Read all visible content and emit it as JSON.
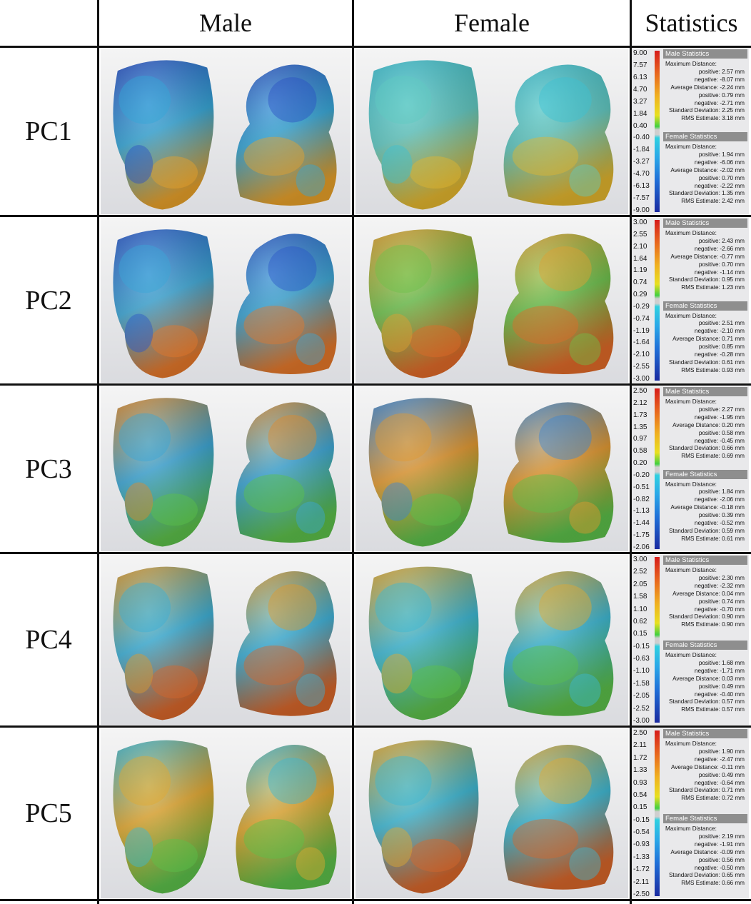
{
  "headers": {
    "male": "Male",
    "female": "Female",
    "statistics": "Statistics"
  },
  "rows": [
    {
      "label": "PC1",
      "scale_ticks": [
        "9.00",
        "7.57",
        "6.13",
        "4.70",
        "3.27",
        "1.84",
        "0.40",
        "-0.40",
        "-1.84",
        "-3.27",
        "-4.70",
        "-6.13",
        "-7.57",
        "-9.00"
      ],
      "male_stats": {
        "title": "Male Statistics",
        "max_label": "Maximum Distance:",
        "max_pos": "positive: 2.57 mm",
        "max_neg": "negative: -8.07 mm",
        "avg": "Average Distance: -2.24 mm",
        "avg_pos": "positive: 0.79 mm",
        "avg_neg": "negative: -2.71 mm",
        "std": "Standard Deviation: 2.25 mm",
        "rms": "RMS Estimate: 3.18 mm"
      },
      "female_stats": {
        "title": "Female Statistics",
        "max_label": "Maximum Distance:",
        "max_pos": "positive: 1.94 mm",
        "max_neg": "negative: -6.06 mm",
        "avg": "Average Distance: -2.02 mm",
        "avg_pos": "positive: 0.70 mm",
        "avg_neg": "negative: -2.22 mm",
        "std": "Standard Deviation: 1.35 mm",
        "rms": "RMS Estimate: 2.42 mm"
      },
      "palette": {
        "male": [
          "#2a4fc4",
          "#33a6d8",
          "#e8a12a"
        ],
        "female": [
          "#3cc0d2",
          "#5fc9c2",
          "#e3b62e"
        ]
      }
    },
    {
      "label": "PC2",
      "scale_ticks": [
        "3.00",
        "2.55",
        "2.10",
        "1.64",
        "1.19",
        "0.74",
        "0.29",
        "-0.29",
        "-0.74",
        "-1.19",
        "-1.64",
        "-2.10",
        "-2.55",
        "-3.00"
      ],
      "male_stats": {
        "title": "Male Statistics",
        "max_label": "Maximum Distance:",
        "max_pos": "positive: 2.43 mm",
        "max_neg": "negative: -2.66 mm",
        "avg": "Average Distance: -0.77 mm",
        "avg_pos": "positive: 0.70 mm",
        "avg_neg": "negative: -1.14 mm",
        "std": "Standard Deviation: 0.95 mm",
        "rms": "RMS Estimate: 1.23 mm"
      },
      "female_stats": {
        "title": "Female Statistics",
        "max_label": "Maximum Distance:",
        "max_pos": "positive: 2.51 mm",
        "max_neg": "negative: -2.10 mm",
        "avg": "Average Distance: 0.71 mm",
        "avg_pos": "positive: 0.85 mm",
        "avg_neg": "negative: -0.28 mm",
        "std": "Standard Deviation: 0.61 mm",
        "rms": "RMS Estimate: 0.93 mm"
      },
      "palette": {
        "male": [
          "#2a56c8",
          "#3aa6d6",
          "#e5782a"
        ],
        "female": [
          "#e0a030",
          "#6cc24a",
          "#e06a28"
        ]
      }
    },
    {
      "label": "PC3",
      "scale_ticks": [
        "2.50",
        "2.12",
        "1.73",
        "1.35",
        "0.97",
        "0.58",
        "0.20",
        "-0.20",
        "-0.51",
        "-0.82",
        "-1.13",
        "-1.44",
        "-1.75",
        "-2.06"
      ],
      "male_stats": {
        "title": "Male Statistics",
        "max_label": "Maximum Distance:",
        "max_pos": "positive: 2.27 mm",
        "max_neg": "negative: -1.95 mm",
        "avg": "Average Distance: 0.20 mm",
        "avg_pos": "positive: 0.58 mm",
        "avg_neg": "negative: -0.45 mm",
        "std": "Standard Deviation: 0.66 mm",
        "rms": "RMS Estimate: 0.69 mm"
      },
      "female_stats": {
        "title": "Female Statistics",
        "max_label": "Maximum Distance:",
        "max_pos": "positive: 1.84 mm",
        "max_neg": "negative: -2.06 mm",
        "avg": "Average Distance: -0.18 mm",
        "avg_pos": "positive: 0.39 mm",
        "avg_neg": "negative: -0.52 mm",
        "std": "Standard Deviation: 0.59 mm",
        "rms": "RMS Estimate: 0.61 mm"
      },
      "palette": {
        "male": [
          "#e08a2a",
          "#3aa6d6",
          "#5cc04a"
        ],
        "female": [
          "#3a86d4",
          "#e3982e",
          "#5cc04a"
        ]
      }
    },
    {
      "label": "PC4",
      "scale_ticks": [
        "3.00",
        "2.52",
        "2.05",
        "1.58",
        "1.10",
        "0.62",
        "0.15",
        "-0.15",
        "-0.63",
        "-1.10",
        "-1.58",
        "-2.05",
        "-2.52",
        "-3.00"
      ],
      "male_stats": {
        "title": "Male Statistics",
        "max_label": "Maximum Distance:",
        "max_pos": "positive: 2.30 mm",
        "max_neg": "negative: -2.32 mm",
        "avg": "Average Distance: 0.04 mm",
        "avg_pos": "positive: 0.74 mm",
        "avg_neg": "negative: -0.70 mm",
        "std": "Standard Deviation: 0.90 mm",
        "rms": "RMS Estimate: 0.90 mm"
      },
      "female_stats": {
        "title": "Female Statistics",
        "max_label": "Maximum Distance:",
        "max_pos": "positive: 1.68 mm",
        "max_neg": "negative: -1.71 mm",
        "avg": "Average Distance: 0.03 mm",
        "avg_pos": "positive: 0.49 mm",
        "avg_neg": "negative: -0.40 mm",
        "std": "Standard Deviation: 0.57 mm",
        "rms": "RMS Estimate: 0.57 mm"
      },
      "palette": {
        "male": [
          "#e09a2a",
          "#3ab0d8",
          "#d8662a"
        ],
        "female": [
          "#e3a82e",
          "#3ab8d4",
          "#5cc04a"
        ]
      }
    },
    {
      "label": "PC5",
      "scale_ticks": [
        "2.50",
        "2.11",
        "1.72",
        "1.33",
        "0.93",
        "0.54",
        "0.15",
        "-0.15",
        "-0.54",
        "-0.93",
        "-1.33",
        "-1.72",
        "-2.11",
        "-2.50"
      ],
      "male_stats": {
        "title": "Male Statistics",
        "max_label": "Maximum Distance:",
        "max_pos": "positive: 1.90 mm",
        "max_neg": "negative: -2.47 mm",
        "avg": "Average Distance: -0.11 mm",
        "avg_pos": "positive: 0.49 mm",
        "avg_neg": "negative: -0.64 mm",
        "std": "Standard Deviation: 0.71 mm",
        "rms": "RMS Estimate: 0.72 mm"
      },
      "female_stats": {
        "title": "Female Statistics",
        "max_label": "Maximum Distance:",
        "max_pos": "positive: 2.19 mm",
        "max_neg": "negative: -1.91 mm",
        "avg": "Average Distance: -0.09 mm",
        "avg_pos": "positive: 0.56 mm",
        "avg_neg": "negative: -0.50 mm",
        "std": "Standard Deviation: 0.65 mm",
        "rms": "RMS Estimate: 0.66 mm"
      },
      "palette": {
        "male": [
          "#3ab8d4",
          "#e3a82e",
          "#5cc04a"
        ],
        "female": [
          "#e3a82e",
          "#3ab8d4",
          "#d8662a"
        ]
      }
    }
  ]
}
